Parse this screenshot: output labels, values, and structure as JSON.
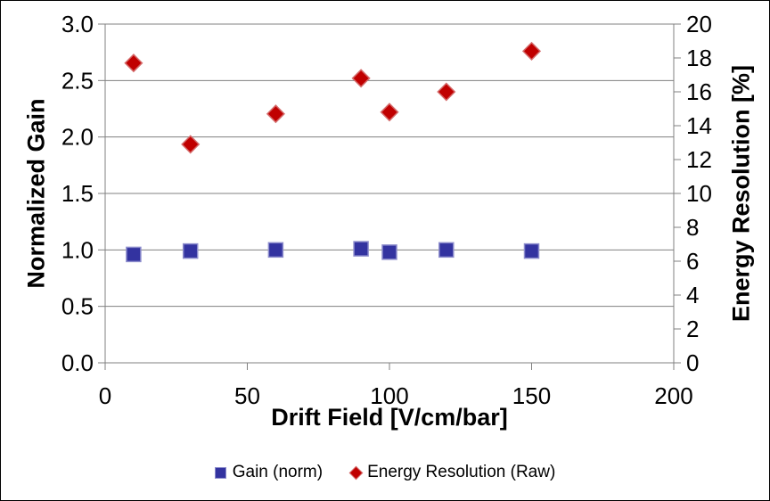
{
  "chart_data": {
    "type": "scatter",
    "title": "",
    "xlabel": "Drift Field [V/cm/bar]",
    "ylabel_left": "Normalized Gain",
    "ylabel_right": "Energy Resolution [%]",
    "xlim": [
      0,
      200
    ],
    "ylim_left": [
      0.0,
      3.0
    ],
    "ylim_right": [
      0,
      20
    ],
    "x_tick_values": [
      0,
      50,
      100,
      150,
      200
    ],
    "x_tick_labels": [
      "0",
      "50",
      "100",
      "150",
      "200"
    ],
    "left_tick_values": [
      0.0,
      0.5,
      1.0,
      1.5,
      2.0,
      2.5,
      3.0
    ],
    "left_tick_labels": [
      "0.0",
      "0.5",
      "1.0",
      "1.5",
      "2.0",
      "2.5",
      "3.0"
    ],
    "right_tick_values": [
      0,
      2,
      4,
      6,
      8,
      10,
      12,
      14,
      16,
      18,
      20
    ],
    "right_tick_labels": [
      "0",
      "2",
      "4",
      "6",
      "8",
      "10",
      "12",
      "14",
      "16",
      "18",
      "20"
    ],
    "grid": "horizontal gridlines at left-axis ticks",
    "legend_position": "bottom-center",
    "colors": {
      "grid": "#808080",
      "axis": "#808080",
      "text": "#000000",
      "background": "#ffffff"
    },
    "series": [
      {
        "name": "Gain (norm)",
        "axis": "left",
        "marker": "square",
        "fill": "#3333A0",
        "border": "#8C8CCC",
        "x": [
          10,
          30,
          60,
          90,
          100,
          120,
          150
        ],
        "y": [
          0.96,
          0.99,
          1.0,
          1.01,
          0.98,
          1.0,
          0.99
        ]
      },
      {
        "name": "Energy Resolution (Raw)",
        "axis": "right",
        "marker": "diamond",
        "fill": "#C00000",
        "border": "#D46A6A",
        "x": [
          10,
          30,
          60,
          90,
          100,
          120,
          150
        ],
        "y": [
          17.7,
          12.9,
          14.7,
          16.8,
          14.8,
          16.0,
          18.4
        ]
      }
    ]
  }
}
